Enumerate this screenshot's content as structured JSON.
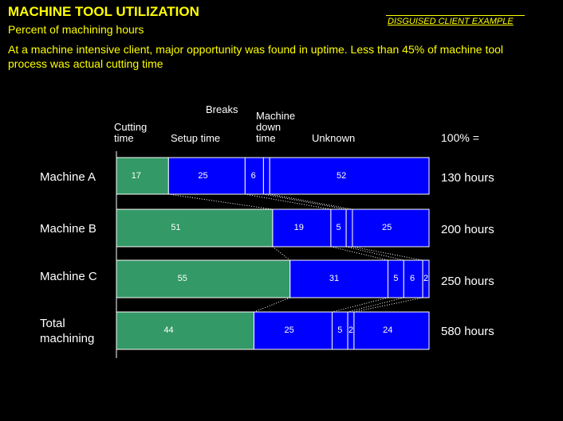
{
  "header": {
    "title": "MACHINE TOOL UTILIZATION",
    "subtitle": "Percent of machining hours",
    "disguised": "DISGUISED CLIENT EXAMPLE",
    "message": "At a machine intensive client, major opportunity was found in uptime.  Less than 45% of machine tool process was actual cutting time"
  },
  "columns": {
    "cutting": [
      "Cutting",
      "time"
    ],
    "setup": "Setup time",
    "breaks": "Breaks",
    "down": [
      "Machine",
      "down",
      "time"
    ],
    "unknown": "Unknown",
    "total": "100% ="
  },
  "colors": {
    "green": "#339966",
    "blue": "#0000ff",
    "yellow": "#ffff00",
    "white": "#ffffff"
  },
  "chart_data": {
    "type": "bar",
    "stacked": true,
    "orientation": "horizontal",
    "categories": [
      "Machine A",
      "Machine B",
      "Machine C",
      "Total machining"
    ],
    "segments": [
      "Cutting time",
      "Setup time",
      "Breaks",
      "Machine down time",
      "Unknown"
    ],
    "series": [
      {
        "values": [
          17,
          51,
          55,
          44
        ],
        "labels": [
          "17",
          "51",
          "55",
          "44"
        ]
      },
      {
        "values": [
          25,
          19,
          31,
          25
        ],
        "labels": [
          "25",
          "19",
          "31",
          "25"
        ]
      },
      {
        "values": [
          6,
          5,
          5,
          5
        ],
        "labels": [
          "6",
          "5",
          "5",
          "5"
        ]
      },
      {
        "values": [
          0,
          0,
          6,
          2
        ],
        "labels": [
          "?",
          "?",
          "6",
          "2"
        ]
      },
      {
        "values": [
          52,
          25,
          2,
          24
        ],
        "labels": [
          "52",
          "25",
          "2",
          "24"
        ]
      }
    ],
    "totals": [
      "130 hours",
      "200 hours",
      "250 hours",
      "580 hours"
    ]
  }
}
